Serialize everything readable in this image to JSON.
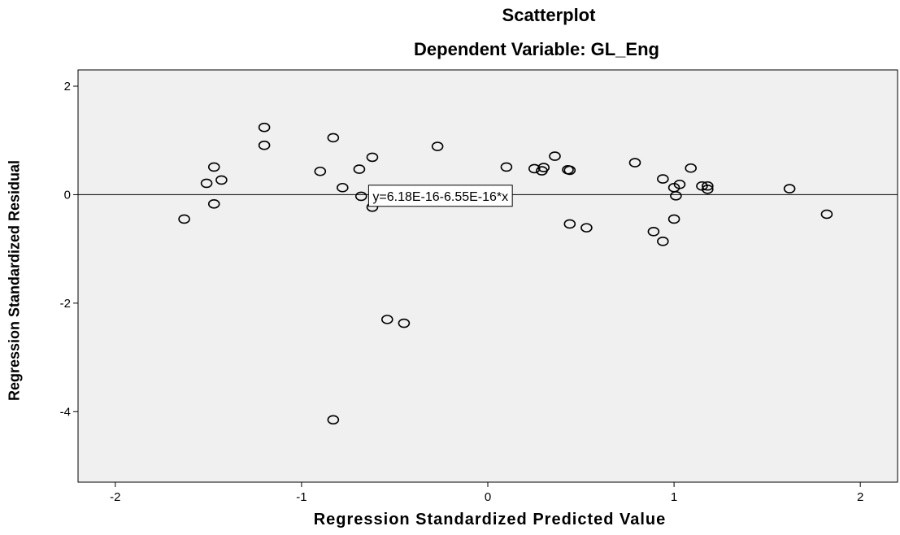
{
  "chart_data": {
    "type": "scatter",
    "title": "Scatterplot",
    "subtitle": "Dependent Variable: GL_Eng",
    "xlabel": "Regression Standardized Predicted Value",
    "ylabel": "Regression Standardized Residual",
    "xlim": [
      -2.2,
      2.2
    ],
    "ylim": [
      -5.3,
      2.3
    ],
    "xticks": [
      -2,
      -1,
      0,
      1,
      2
    ],
    "yticks": [
      -4,
      -2,
      0,
      2
    ],
    "xtick_labels": [
      "-2",
      "-1",
      "0",
      "1",
      "2"
    ],
    "ytick_labels": [
      "-4",
      "-2",
      "0",
      "2"
    ],
    "grid": false,
    "background": "#f0f0f0",
    "marker": "open-circle",
    "fit_line": {
      "intercept": 6.18e-16,
      "slope": -6.55e-16,
      "label": "y=6.18E-16-6.55E-16*x",
      "label_x": -0.64,
      "label_y": -0.02
    },
    "points": [
      {
        "x": -1.63,
        "y": -0.45
      },
      {
        "x": -1.51,
        "y": 0.21
      },
      {
        "x": -1.47,
        "y": 0.51
      },
      {
        "x": -1.47,
        "y": -0.17
      },
      {
        "x": -1.43,
        "y": 0.27
      },
      {
        "x": -1.2,
        "y": 1.24
      },
      {
        "x": -1.2,
        "y": 0.91
      },
      {
        "x": -0.9,
        "y": 0.43
      },
      {
        "x": -0.83,
        "y": 1.05
      },
      {
        "x": -0.78,
        "y": 0.13
      },
      {
        "x": -0.69,
        "y": 0.47
      },
      {
        "x": -0.68,
        "y": -0.03
      },
      {
        "x": -0.62,
        "y": 0.69
      },
      {
        "x": -0.62,
        "y": -0.23
      },
      {
        "x": -0.27,
        "y": 0.89
      },
      {
        "x": -0.54,
        "y": -2.3
      },
      {
        "x": -0.45,
        "y": -2.37
      },
      {
        "x": -0.83,
        "y": -4.15
      },
      {
        "x": 0.1,
        "y": 0.51
      },
      {
        "x": 0.25,
        "y": 0.48
      },
      {
        "x": 0.29,
        "y": 0.44
      },
      {
        "x": 0.3,
        "y": 0.5
      },
      {
        "x": 0.36,
        "y": 0.71
      },
      {
        "x": 0.43,
        "y": 0.46
      },
      {
        "x": 0.44,
        "y": 0.45
      },
      {
        "x": 0.44,
        "y": -0.54
      },
      {
        "x": 0.53,
        "y": -0.61
      },
      {
        "x": 0.79,
        "y": 0.59
      },
      {
        "x": 0.89,
        "y": -0.68
      },
      {
        "x": 0.94,
        "y": 0.29
      },
      {
        "x": 0.94,
        "y": -0.86
      },
      {
        "x": 1.0,
        "y": 0.13
      },
      {
        "x": 1.0,
        "y": -0.45
      },
      {
        "x": 1.01,
        "y": -0.02
      },
      {
        "x": 1.03,
        "y": 0.19
      },
      {
        "x": 1.09,
        "y": 0.49
      },
      {
        "x": 1.15,
        "y": 0.16
      },
      {
        "x": 1.18,
        "y": 0.16
      },
      {
        "x": 1.18,
        "y": 0.1
      },
      {
        "x": 1.62,
        "y": 0.11
      },
      {
        "x": 1.82,
        "y": -0.36
      }
    ]
  }
}
